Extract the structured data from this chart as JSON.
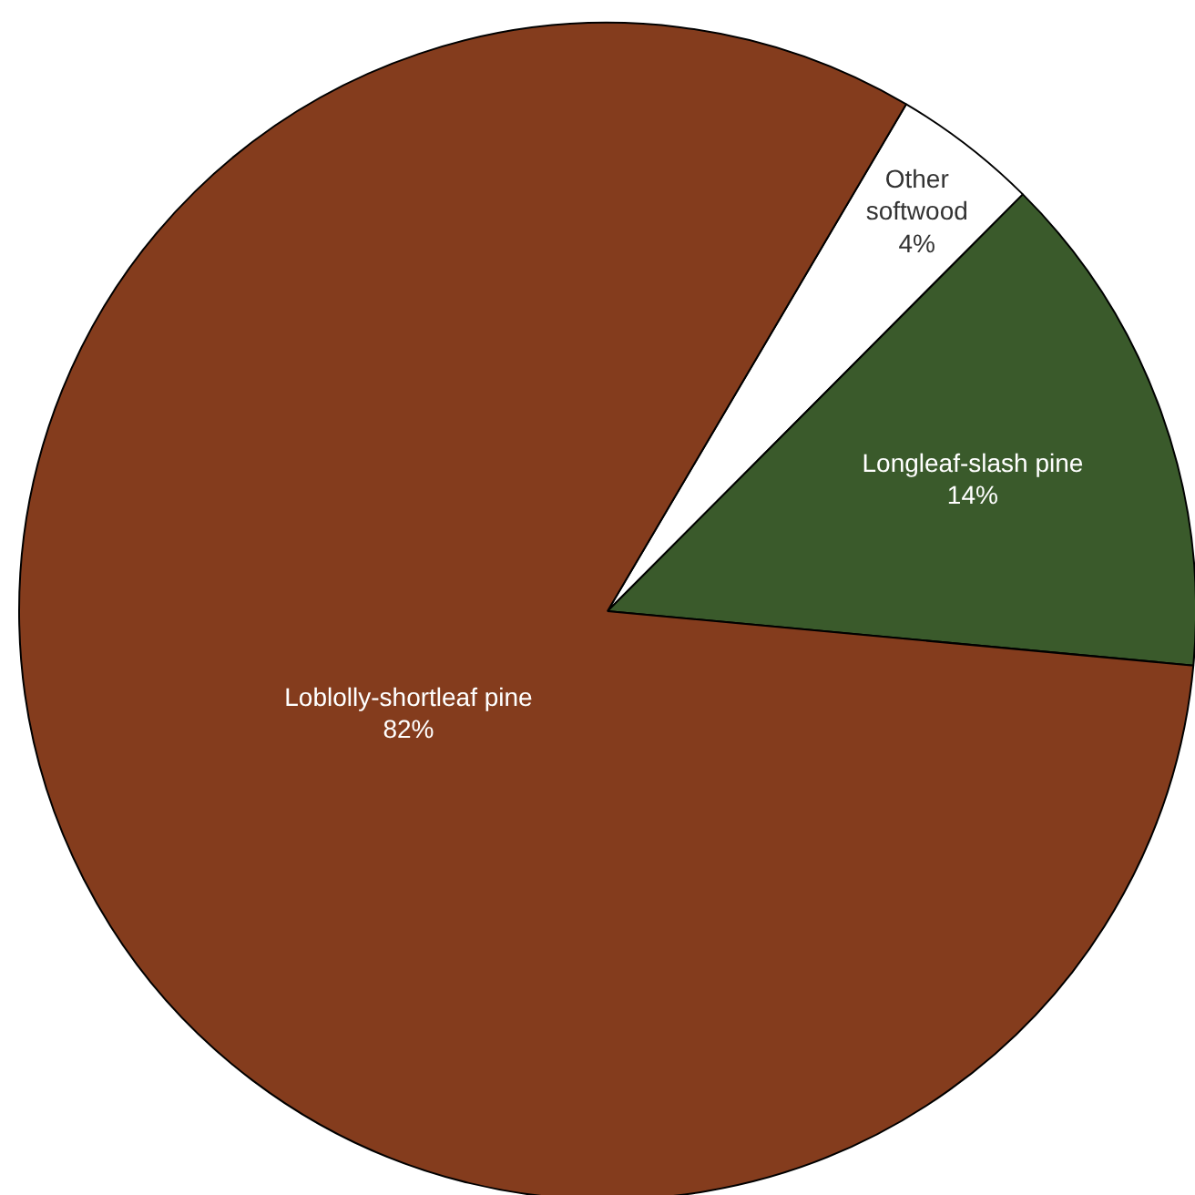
{
  "chart_data": {
    "type": "pie",
    "categories": [
      "Other softwood",
      "Longleaf-slash pine",
      "Loblolly-shortleaf pine"
    ],
    "values": [
      4,
      14,
      82
    ],
    "colors": [
      "#ffffff",
      "#3a5a2b",
      "#843c1d"
    ],
    "value_labels": [
      "4%",
      "14%",
      "82%"
    ]
  }
}
